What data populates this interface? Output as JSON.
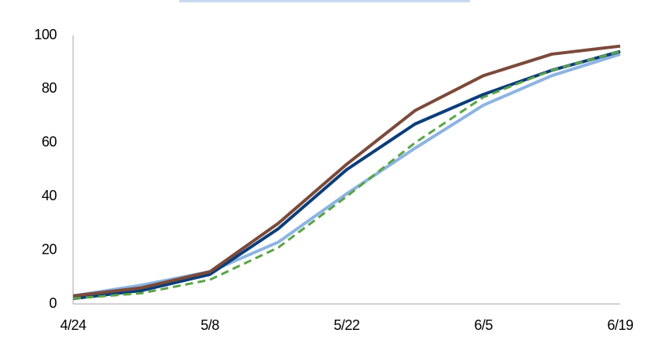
{
  "chart_data": {
    "type": "line",
    "categories": [
      "4/24",
      null,
      "5/8",
      null,
      "5/22",
      null,
      "6/5",
      null,
      "6/19"
    ],
    "series": [
      {
        "color": "#8db4e2",
        "dash": false,
        "values": [
          3,
          7,
          12,
          23,
          41,
          58,
          74,
          85,
          93
        ]
      },
      {
        "color": "#0a3d7a",
        "dash": false,
        "values": [
          2,
          5,
          11,
          28,
          50,
          67,
          78,
          87,
          94
        ]
      },
      {
        "color": "#7b4a3a",
        "dash": false,
        "values": [
          3,
          6,
          12,
          30,
          52,
          72,
          85,
          93,
          96
        ]
      },
      {
        "color": "#5aa447",
        "dash": true,
        "values": [
          2,
          4,
          9,
          21,
          40,
          60,
          77,
          87,
          94
        ]
      }
    ],
    "ylim": [
      0,
      100
    ],
    "yticks": [
      0,
      20,
      40,
      60,
      80,
      100
    ],
    "grid": false
  }
}
